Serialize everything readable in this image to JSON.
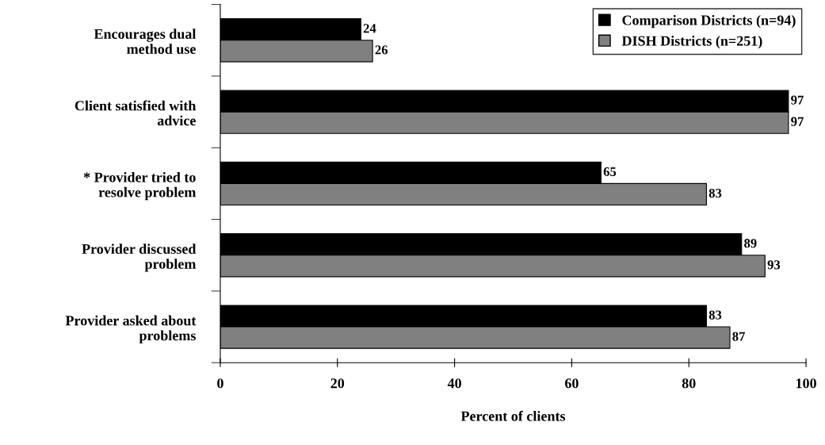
{
  "chart_data": {
    "type": "bar",
    "orientation": "horizontal",
    "xlabel": "Percent of clients",
    "categories": [
      "Encourages dual\nmethod use",
      "Client satisfied with\nadvice",
      "* Provider tried to\nresolve problem",
      "Provider discussed\nproblem",
      "Provider asked about\nproblems"
    ],
    "series": [
      {
        "name": "Comparison Districts (n=94)",
        "color": "#000000",
        "values": [
          24,
          97,
          65,
          89,
          83
        ]
      },
      {
        "name": "DISH Districts (n=251)",
        "color": "#808080",
        "values": [
          26,
          97,
          83,
          93,
          87
        ]
      }
    ],
    "xlim": [
      0,
      100
    ],
    "xticks": [
      0,
      20,
      40,
      60,
      80,
      100
    ],
    "data_labels": true,
    "legend": "top right",
    "grid": false
  }
}
